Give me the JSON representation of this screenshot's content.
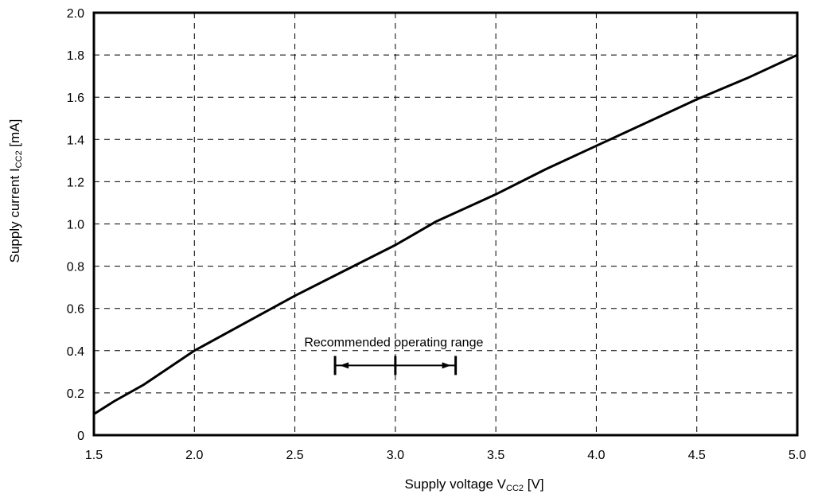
{
  "chart_data": {
    "type": "line",
    "title": "",
    "xlabel": {
      "main": "Supply voltage  V",
      "sub": "CC2",
      "unit": " [V]"
    },
    "ylabel": {
      "main": "Supply current  I",
      "sub": "CC2",
      "unit": " [mA]"
    },
    "xlim": [
      1.5,
      5.0
    ],
    "ylim": [
      0,
      2.0
    ],
    "x_ticks": [
      1.5,
      2.0,
      2.5,
      3.0,
      3.5,
      4.0,
      4.5,
      5.0
    ],
    "x_tick_labels": [
      "1.5",
      "2.0",
      "2.5",
      "3.0",
      "3.5",
      "4.0",
      "4.5",
      "5.0"
    ],
    "y_ticks": [
      0,
      0.2,
      0.4,
      0.6,
      0.8,
      1.0,
      1.2,
      1.4,
      1.6,
      1.8,
      2.0
    ],
    "y_tick_labels": [
      "0",
      "0.2",
      "0.4",
      "0.6",
      "0.8",
      "1.0",
      "1.2",
      "1.4",
      "1.6",
      "1.8",
      "2.0"
    ],
    "grid": true,
    "grid_style": "dashed",
    "series": [
      {
        "color": "#000000",
        "x": [
          1.5,
          1.6,
          1.75,
          2.0,
          2.25,
          2.5,
          2.75,
          3.0,
          3.2,
          3.5,
          3.75,
          4.0,
          4.25,
          4.5,
          4.75,
          5.0
        ],
        "y": [
          0.1,
          0.16,
          0.24,
          0.4,
          0.53,
          0.66,
          0.78,
          0.9,
          1.01,
          1.14,
          1.26,
          1.37,
          1.48,
          1.59,
          1.69,
          1.8
        ]
      }
    ],
    "annotations": [
      {
        "text": "Recommended operating range",
        "range": [
          2.7,
          3.3
        ],
        "center": 3.0,
        "y": 0.33
      }
    ]
  }
}
